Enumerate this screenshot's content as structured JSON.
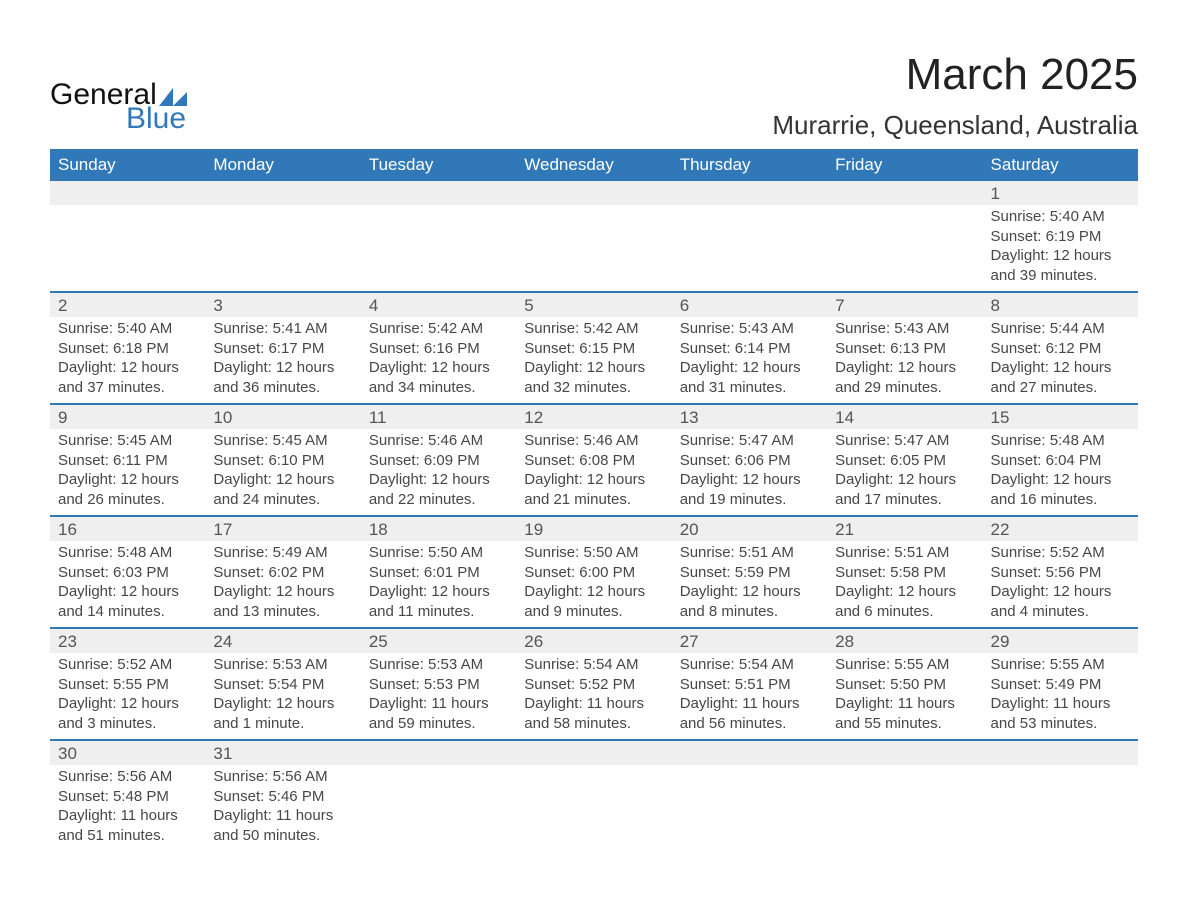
{
  "brand": {
    "word1": "General",
    "word2": "Blue",
    "tri_colors": [
      "#3178b9",
      "#8fb6d9"
    ]
  },
  "title": "March 2025",
  "location": "Murarrie, Queensland, Australia",
  "columns": [
    "Sunday",
    "Monday",
    "Tuesday",
    "Wednesday",
    "Thursday",
    "Friday",
    "Saturday"
  ],
  "style": {
    "header_bg": "#3178b9",
    "header_fg": "#ffffff",
    "row_divider": "#3178b9",
    "daynum_bg": "#efefef",
    "text_color": "#474747",
    "body_font_size_pt": 11,
    "header_font_size_pt": 13,
    "title_font_size_pt": 33,
    "location_font_size_pt": 20
  },
  "weeks": [
    [
      null,
      null,
      null,
      null,
      null,
      null,
      {
        "n": "1",
        "sunrise": "5:40 AM",
        "sunset": "6:19 PM",
        "daylight": "12 hours and 39 minutes."
      }
    ],
    [
      {
        "n": "2",
        "sunrise": "5:40 AM",
        "sunset": "6:18 PM",
        "daylight": "12 hours and 37 minutes."
      },
      {
        "n": "3",
        "sunrise": "5:41 AM",
        "sunset": "6:17 PM",
        "daylight": "12 hours and 36 minutes."
      },
      {
        "n": "4",
        "sunrise": "5:42 AM",
        "sunset": "6:16 PM",
        "daylight": "12 hours and 34 minutes."
      },
      {
        "n": "5",
        "sunrise": "5:42 AM",
        "sunset": "6:15 PM",
        "daylight": "12 hours and 32 minutes."
      },
      {
        "n": "6",
        "sunrise": "5:43 AM",
        "sunset": "6:14 PM",
        "daylight": "12 hours and 31 minutes."
      },
      {
        "n": "7",
        "sunrise": "5:43 AM",
        "sunset": "6:13 PM",
        "daylight": "12 hours and 29 minutes."
      },
      {
        "n": "8",
        "sunrise": "5:44 AM",
        "sunset": "6:12 PM",
        "daylight": "12 hours and 27 minutes."
      }
    ],
    [
      {
        "n": "9",
        "sunrise": "5:45 AM",
        "sunset": "6:11 PM",
        "daylight": "12 hours and 26 minutes."
      },
      {
        "n": "10",
        "sunrise": "5:45 AM",
        "sunset": "6:10 PM",
        "daylight": "12 hours and 24 minutes."
      },
      {
        "n": "11",
        "sunrise": "5:46 AM",
        "sunset": "6:09 PM",
        "daylight": "12 hours and 22 minutes."
      },
      {
        "n": "12",
        "sunrise": "5:46 AM",
        "sunset": "6:08 PM",
        "daylight": "12 hours and 21 minutes."
      },
      {
        "n": "13",
        "sunrise": "5:47 AM",
        "sunset": "6:06 PM",
        "daylight": "12 hours and 19 minutes."
      },
      {
        "n": "14",
        "sunrise": "5:47 AM",
        "sunset": "6:05 PM",
        "daylight": "12 hours and 17 minutes."
      },
      {
        "n": "15",
        "sunrise": "5:48 AM",
        "sunset": "6:04 PM",
        "daylight": "12 hours and 16 minutes."
      }
    ],
    [
      {
        "n": "16",
        "sunrise": "5:48 AM",
        "sunset": "6:03 PM",
        "daylight": "12 hours and 14 minutes."
      },
      {
        "n": "17",
        "sunrise": "5:49 AM",
        "sunset": "6:02 PM",
        "daylight": "12 hours and 13 minutes."
      },
      {
        "n": "18",
        "sunrise": "5:50 AM",
        "sunset": "6:01 PM",
        "daylight": "12 hours and 11 minutes."
      },
      {
        "n": "19",
        "sunrise": "5:50 AM",
        "sunset": "6:00 PM",
        "daylight": "12 hours and 9 minutes."
      },
      {
        "n": "20",
        "sunrise": "5:51 AM",
        "sunset": "5:59 PM",
        "daylight": "12 hours and 8 minutes."
      },
      {
        "n": "21",
        "sunrise": "5:51 AM",
        "sunset": "5:58 PM",
        "daylight": "12 hours and 6 minutes."
      },
      {
        "n": "22",
        "sunrise": "5:52 AM",
        "sunset": "5:56 PM",
        "daylight": "12 hours and 4 minutes."
      }
    ],
    [
      {
        "n": "23",
        "sunrise": "5:52 AM",
        "sunset": "5:55 PM",
        "daylight": "12 hours and 3 minutes."
      },
      {
        "n": "24",
        "sunrise": "5:53 AM",
        "sunset": "5:54 PM",
        "daylight": "12 hours and 1 minute."
      },
      {
        "n": "25",
        "sunrise": "5:53 AM",
        "sunset": "5:53 PM",
        "daylight": "11 hours and 59 minutes."
      },
      {
        "n": "26",
        "sunrise": "5:54 AM",
        "sunset": "5:52 PM",
        "daylight": "11 hours and 58 minutes."
      },
      {
        "n": "27",
        "sunrise": "5:54 AM",
        "sunset": "5:51 PM",
        "daylight": "11 hours and 56 minutes."
      },
      {
        "n": "28",
        "sunrise": "5:55 AM",
        "sunset": "5:50 PM",
        "daylight": "11 hours and 55 minutes."
      },
      {
        "n": "29",
        "sunrise": "5:55 AM",
        "sunset": "5:49 PM",
        "daylight": "11 hours and 53 minutes."
      }
    ],
    [
      {
        "n": "30",
        "sunrise": "5:56 AM",
        "sunset": "5:48 PM",
        "daylight": "11 hours and 51 minutes."
      },
      {
        "n": "31",
        "sunrise": "5:56 AM",
        "sunset": "5:46 PM",
        "daylight": "11 hours and 50 minutes."
      },
      null,
      null,
      null,
      null,
      null
    ]
  ],
  "labels": {
    "sunrise": "Sunrise: ",
    "sunset": "Sunset: ",
    "daylight": "Daylight: "
  }
}
